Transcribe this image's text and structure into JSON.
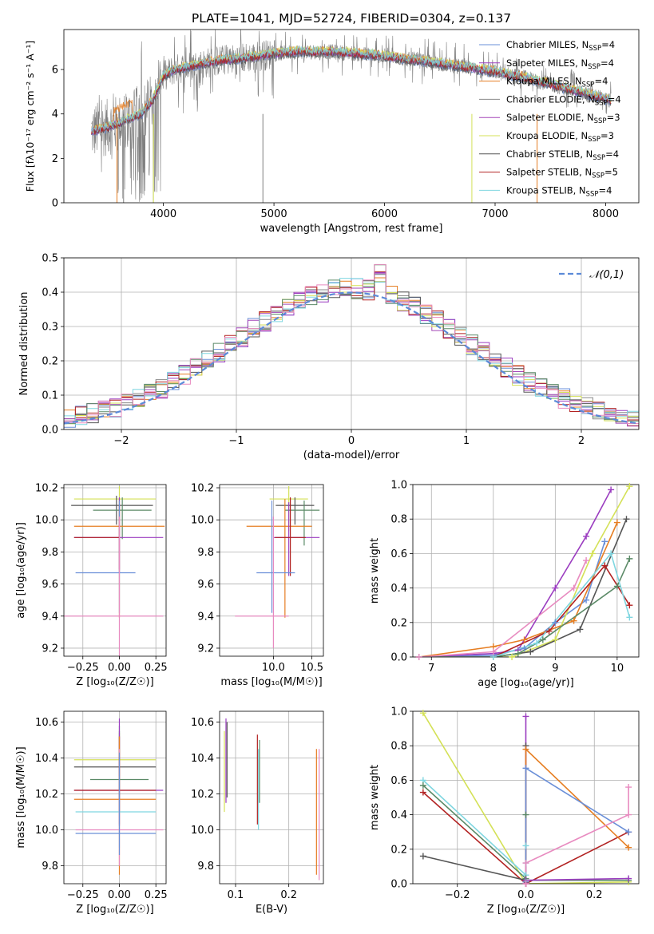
{
  "figure_title": "PLATE=1041, MJD=52724, FIBERID=0304, z=0.137",
  "palette": {
    "Chabrier MILES": "#6a8fd8",
    "Salpeter MILES": "#9b3dc0",
    "Kroupa MILES": "#e67e22",
    "Chabrier ELODIE": "#888888",
    "Salpeter ELODIE": "#a347b8",
    "Kroupa ELODIE": "#d4e157",
    "Chabrier STELIB": "#555555",
    "Salpeter STELIB": "#b22222",
    "Kroupa STELIB": "#7fd6e0",
    "extra_green": "#5b8a67",
    "extra_pink": "#e88bc0"
  },
  "chart_data": [
    {
      "id": "spectrum",
      "type": "line",
      "title": "",
      "xlabel": "wavelength [Angstrom, rest frame]",
      "xlim": [
        3100,
        8300
      ],
      "ylim": [
        0,
        7.8
      ],
      "xticks": [
        4000,
        5000,
        6000,
        7000,
        8000
      ],
      "yticks": [
        0,
        2,
        4,
        6
      ],
      "legend_position": "top-right",
      "legend": [
        {
          "name": "Chabrier MILES",
          "sub": "SSP",
          "n": 4,
          "color": "#6a8fd8"
        },
        {
          "name": "Salpeter MILES",
          "sub": "SSP",
          "n": 4,
          "color": "#9b3dc0"
        },
        {
          "name": "Kroupa MILES",
          "sub": "SSP",
          "n": 4,
          "color": "#e67e22"
        },
        {
          "name": "Chabrier ELODIE",
          "sub": "SSP",
          "n": 4,
          "color": "#888888"
        },
        {
          "name": "Salpeter ELODIE",
          "sub": "SSP",
          "n": 3,
          "color": "#a347b8"
        },
        {
          "name": "Kroupa ELODIE",
          "sub": "SSP",
          "n": 3,
          "color": "#d4e157"
        },
        {
          "name": "Chabrier STELIB",
          "sub": "SSP",
          "n": 4,
          "color": "#555555"
        },
        {
          "name": "Salpeter STELIB",
          "sub": "SSP",
          "n": 5,
          "color": "#b22222"
        },
        {
          "name": "Kroupa STELIB",
          "sub": "SSP",
          "n": 4,
          "color": "#7fd6e0"
        }
      ],
      "continuum": {
        "x": [
          3350,
          3500,
          3600,
          3700,
          3800,
          3900,
          4000,
          4100,
          4300,
          4500,
          4700,
          5000,
          5200,
          5500,
          5800,
          6000,
          6300,
          6600,
          7000,
          7300,
          7600,
          7900,
          8050
        ],
        "y": [
          3.2,
          3.4,
          3.6,
          3.8,
          4.0,
          4.6,
          5.7,
          6.0,
          6.2,
          6.4,
          6.5,
          6.7,
          6.8,
          6.8,
          6.7,
          6.6,
          6.4,
          6.2,
          5.9,
          5.6,
          5.2,
          4.8,
          4.6
        ]
      }
    },
    {
      "id": "residuals",
      "type": "histogram",
      "xlabel": "(data-model)/error",
      "ylabel": "Normed distribution",
      "xlim": [
        -2.5,
        2.5
      ],
      "ylim": [
        0,
        0.5
      ],
      "xticks": [
        -2,
        -1,
        0,
        1,
        2
      ],
      "yticks": [
        0,
        0.1,
        0.2,
        0.3,
        0.4,
        0.5
      ],
      "grid": true,
      "legend_position": "top-right",
      "reference": {
        "label": "𝒩(0,1)",
        "mu": 0,
        "sigma": 1,
        "color": "#5b8ad8"
      }
    },
    {
      "id": "age-vs-Z",
      "type": "errorbar",
      "xlabel": "Z [log₁₀(Z/Z☉)]",
      "ylabel": "age  [log₁₀(age/yr)]",
      "xlim": [
        -0.38,
        0.32
      ],
      "ylim": [
        9.15,
        10.22
      ],
      "xticks": [
        -0.25,
        0.0,
        0.25
      ],
      "yticks": [
        9.2,
        9.4,
        9.6,
        9.8,
        10.0,
        10.2
      ],
      "points": [
        {
          "x": 0.0,
          "xerr": [
            0.31,
            0.25
          ],
          "y": 10.13,
          "yerr": [
            0.25,
            0.08
          ],
          "color": "#d4e157"
        },
        {
          "x": -0.02,
          "xerr": [
            0.31,
            0.25
          ],
          "y": 10.09,
          "yerr": [
            0.12,
            0.06
          ],
          "color": "#555555"
        },
        {
          "x": 0.02,
          "xerr": [
            0.2,
            0.2
          ],
          "y": 10.06,
          "yerr": [
            0.18,
            0.08
          ],
          "color": "#5b8a67"
        },
        {
          "x": 0.0,
          "xerr": [
            0.31,
            0.31
          ],
          "y": 9.96,
          "yerr": [
            0.57,
            0.17
          ],
          "color": "#e67e22"
        },
        {
          "x": 0.0,
          "xerr": [
            0.31,
            0.3
          ],
          "y": 9.89,
          "yerr": [
            0.22,
            0.25
          ],
          "color": "#9b3dc0"
        },
        {
          "x": 0.0,
          "xerr": [
            0.31,
            0.0
          ],
          "y": 9.89,
          "yerr": [
            0.2,
            0.2
          ],
          "color": "#b22222"
        },
        {
          "x": 0.0,
          "xerr": [
            0.3,
            0.11
          ],
          "y": 9.67,
          "yerr": [
            0.25,
            0.45
          ],
          "color": "#6a8fd8"
        },
        {
          "x": 0.0,
          "xerr": [
            0.38,
            0.3
          ],
          "y": 9.4,
          "yerr": [
            0.25,
            0.62
          ],
          "color": "#e88bc0"
        }
      ]
    },
    {
      "id": "age-vs-mass",
      "type": "errorbar",
      "xlabel": "mass [log₁₀(M/M☉)]",
      "ylabel": "",
      "xlim": [
        9.3,
        10.65
      ],
      "ylim": [
        9.15,
        10.22
      ],
      "xticks": [
        10.0,
        10.5
      ],
      "yticks": [
        9.2,
        9.4,
        9.6,
        9.8,
        10.0,
        10.2
      ],
      "points": [
        {
          "x": 10.2,
          "xerr": [
            0.25,
            0.25
          ],
          "y": 10.13,
          "yerr": [
            0.2,
            0.08
          ],
          "color": "#d4e157"
        },
        {
          "x": 10.28,
          "xerr": [
            0.25,
            0.25
          ],
          "y": 10.09,
          "yerr": [
            0.12,
            0.05
          ],
          "color": "#555555"
        },
        {
          "x": 10.4,
          "xerr": [
            0.25,
            0.2
          ],
          "y": 10.06,
          "yerr": [
            0.22,
            0.06
          ],
          "color": "#5b8a67"
        },
        {
          "x": 10.15,
          "xerr": [
            0.5,
            0.35
          ],
          "y": 9.96,
          "yerr": [
            0.57,
            0.17
          ],
          "color": "#e67e22"
        },
        {
          "x": 10.2,
          "xerr": [
            0.2,
            0.4
          ],
          "y": 9.89,
          "yerr": [
            0.24,
            0.22
          ],
          "color": "#9b3dc0"
        },
        {
          "x": 10.22,
          "xerr": [
            0.2,
            0.2
          ],
          "y": 9.89,
          "yerr": [
            0.24,
            0.25
          ],
          "color": "#b22222"
        },
        {
          "x": 9.98,
          "xerr": [
            0.2,
            0.3
          ],
          "y": 9.67,
          "yerr": [
            0.25,
            0.45
          ],
          "color": "#6a8fd8"
        },
        {
          "x": 10.0,
          "xerr": [
            0.5,
            0.2
          ],
          "y": 9.4,
          "yerr": [
            0.2,
            0.62
          ],
          "color": "#e88bc0"
        }
      ]
    },
    {
      "id": "massweight-vs-age",
      "type": "line",
      "xlabel": "age  [log₁₀(age/yr)]",
      "ylabel": "mass weight",
      "xlim": [
        6.7,
        10.35
      ],
      "ylim": [
        0,
        1.0
      ],
      "xticks": [
        7,
        8,
        9,
        10
      ],
      "yticks": [
        0,
        0.2,
        0.4,
        0.6,
        0.8,
        1.0
      ],
      "grid": true,
      "series": [
        {
          "color": "#6a8fd8",
          "x": [
            6.8,
            8.0,
            8.5,
            9.0,
            9.5,
            9.8
          ],
          "y": [
            0.0,
            0.01,
            0.05,
            0.2,
            0.33,
            0.67
          ]
        },
        {
          "color": "#9b3dc0",
          "x": [
            6.8,
            8.0,
            8.4,
            9.0,
            9.5,
            9.9
          ],
          "y": [
            0.0,
            0.02,
            0.04,
            0.4,
            0.7,
            0.97
          ]
        },
        {
          "color": "#e67e22",
          "x": [
            6.8,
            8.0,
            8.5,
            9.3,
            10.0
          ],
          "y": [
            0.0,
            0.06,
            0.1,
            0.21,
            0.78
          ]
        },
        {
          "color": "#d4e157",
          "x": [
            6.8,
            8.3,
            9.0,
            9.6,
            10.2
          ],
          "y": [
            0.0,
            0.0,
            0.1,
            0.6,
            0.99
          ]
        },
        {
          "color": "#555555",
          "x": [
            6.8,
            8.0,
            8.6,
            9.4,
            10.15
          ],
          "y": [
            0.0,
            0.0,
            0.03,
            0.16,
            0.8
          ]
        },
        {
          "color": "#5b8a67",
          "x": [
            6.8,
            8.0,
            8.4,
            8.8,
            10.0,
            10.2
          ],
          "y": [
            0.0,
            0.0,
            0.02,
            0.1,
            0.41,
            0.57
          ]
        },
        {
          "color": "#b22222",
          "x": [
            6.8,
            8.0,
            8.9,
            9.8,
            10.2
          ],
          "y": [
            0.0,
            0.0,
            0.15,
            0.53,
            0.3
          ]
        },
        {
          "color": "#7fd6e0",
          "x": [
            6.8,
            8.0,
            8.7,
            9.9,
            10.2
          ],
          "y": [
            0.0,
            0.0,
            0.08,
            0.6,
            0.23
          ]
        },
        {
          "color": "#e88bc0",
          "x": [
            6.8,
            8.0,
            9.3,
            9.5
          ],
          "y": [
            0.0,
            0.03,
            0.4,
            0.56
          ]
        }
      ]
    },
    {
      "id": "mass-vs-Z",
      "type": "errorbar",
      "xlabel": "Z [log₁₀(Z/Z☉)]",
      "ylabel": "mass [log₁₀(M/M☉)]",
      "xlim": [
        -0.38,
        0.32
      ],
      "ylim": [
        9.7,
        10.66
      ],
      "xticks": [
        -0.25,
        0.0,
        0.25
      ],
      "yticks": [
        9.8,
        10.0,
        10.2,
        10.4,
        10.6
      ],
      "points": [
        {
          "x": 0.0,
          "xerr": [
            0.31,
            0.25
          ],
          "y": 10.39,
          "yerr": [
            0.3,
            0.15
          ],
          "color": "#d4e157"
        },
        {
          "x": 0.0,
          "xerr": [
            0.31,
            0.25
          ],
          "y": 10.35,
          "yerr": [
            0.25,
            0.2
          ],
          "color": "#555555"
        },
        {
          "x": 0.0,
          "xerr": [
            0.2,
            0.2
          ],
          "y": 10.28,
          "yerr": [
            0.12,
            0.3
          ],
          "color": "#5b8a67"
        },
        {
          "x": 0.0,
          "xerr": [
            0.31,
            0.3
          ],
          "y": 10.22,
          "yerr": [
            0.2,
            0.4
          ],
          "color": "#9b3dc0"
        },
        {
          "x": 0.0,
          "xerr": [
            0.31,
            0.25
          ],
          "y": 10.22,
          "yerr": [
            0.19,
            0.3
          ],
          "color": "#b22222"
        },
        {
          "x": 0.0,
          "xerr": [
            0.31,
            0.25
          ],
          "y": 10.17,
          "yerr": [
            0.42,
            0.35
          ],
          "color": "#e67e22"
        },
        {
          "x": 0.0,
          "xerr": [
            0.3,
            0.25
          ],
          "y": 10.1,
          "yerr": [
            0.2,
            0.2
          ],
          "color": "#7fd6e0"
        },
        {
          "x": 0.0,
          "xerr": [
            0.3,
            0.3
          ],
          "y": 10.0,
          "yerr": [
            0.2,
            0.45
          ],
          "color": "#e88bc0"
        },
        {
          "x": 0.0,
          "xerr": [
            0.3,
            0.25
          ],
          "y": 9.98,
          "yerr": [
            0.12,
            0.45
          ],
          "color": "#6a8fd8"
        }
      ]
    },
    {
      "id": "mass-vs-ebv",
      "type": "errorbar",
      "xlabel": "E(B-V)",
      "ylabel": "",
      "xlim": [
        0.07,
        0.265
      ],
      "ylim": [
        9.7,
        10.66
      ],
      "xticks": [
        0.1,
        0.2
      ],
      "yticks": [
        9.8,
        10.0,
        10.2,
        10.4,
        10.6
      ],
      "points": [
        {
          "x": 0.079,
          "xerr": [
            0,
            0
          ],
          "y": 10.3,
          "yerr": [
            0.2,
            0.25
          ],
          "color": "#d4e157"
        },
        {
          "x": 0.082,
          "xerr": [
            0,
            0
          ],
          "y": 10.4,
          "yerr": [
            0.25,
            0.22
          ],
          "color": "#9b3dc0"
        },
        {
          "x": 0.084,
          "xerr": [
            0,
            0
          ],
          "y": 10.4,
          "yerr": [
            0.22,
            0.2
          ],
          "color": "#555555"
        },
        {
          "x": 0.141,
          "xerr": [
            0,
            0
          ],
          "y": 10.28,
          "yerr": [
            0.25,
            0.25
          ],
          "color": "#b22222"
        },
        {
          "x": 0.143,
          "xerr": [
            0,
            0
          ],
          "y": 10.2,
          "yerr": [
            0.2,
            0.25
          ],
          "color": "#7fd6e0"
        },
        {
          "x": 0.145,
          "xerr": [
            0,
            0
          ],
          "y": 10.35,
          "yerr": [
            0.2,
            0.15
          ],
          "color": "#5b8a67"
        },
        {
          "x": 0.252,
          "xerr": [
            0,
            0
          ],
          "y": 10.1,
          "yerr": [
            0.35,
            0.35
          ],
          "color": "#e67e22"
        },
        {
          "x": 0.257,
          "xerr": [
            0,
            0
          ],
          "y": 10.1,
          "yerr": [
            0.38,
            0.35
          ],
          "color": "#e88bc0"
        }
      ]
    },
    {
      "id": "massweight-vs-Z",
      "type": "line",
      "xlabel": "Z [log₁₀(Z/Z☉)]",
      "ylabel": "mass weight",
      "xlim": [
        -0.33,
        0.33
      ],
      "ylim": [
        0,
        1.0
      ],
      "xticks": [
        -0.2,
        0.0,
        0.2
      ],
      "yticks": [
        0,
        0.2,
        0.4,
        0.6,
        0.8,
        1.0
      ],
      "grid": true,
      "series": [
        {
          "color": "#d4e157",
          "x": [
            -0.3,
            0.0,
            0.3
          ],
          "y": [
            0.99,
            0.0,
            0.01
          ]
        },
        {
          "color": "#7fd6e0",
          "x": [
            -0.3,
            0.0,
            0.0,
            0.0
          ],
          "y": [
            0.6,
            0.05,
            0.12,
            0.22
          ]
        },
        {
          "color": "#5b8a67",
          "x": [
            -0.3,
            0.0,
            0.0,
            0.0,
            0.3
          ],
          "y": [
            0.57,
            0.03,
            0.4,
            0.02,
            0.02
          ]
        },
        {
          "color": "#b22222",
          "x": [
            -0.3,
            0.0,
            0.3
          ],
          "y": [
            0.53,
            0.0,
            0.3
          ]
        },
        {
          "color": "#555555",
          "x": [
            -0.3,
            0.0,
            0.0
          ],
          "y": [
            0.16,
            0.02,
            0.8
          ]
        },
        {
          "color": "#9b3dc0",
          "x": [
            0.0,
            0.0,
            0.0,
            0.3
          ],
          "y": [
            0.0,
            0.97,
            0.02,
            0.03
          ]
        },
        {
          "color": "#e67e22",
          "x": [
            0.0,
            0.0,
            0.3
          ],
          "y": [
            0.01,
            0.78,
            0.21
          ]
        },
        {
          "color": "#6a8fd8",
          "x": [
            0.0,
            0.0,
            0.3
          ],
          "y": [
            0.01,
            0.67,
            0.3
          ]
        },
        {
          "color": "#e88bc0",
          "x": [
            0.0,
            0.0,
            0.3,
            0.3
          ],
          "y": [
            0.0,
            0.12,
            0.4,
            0.56
          ]
        }
      ]
    }
  ]
}
